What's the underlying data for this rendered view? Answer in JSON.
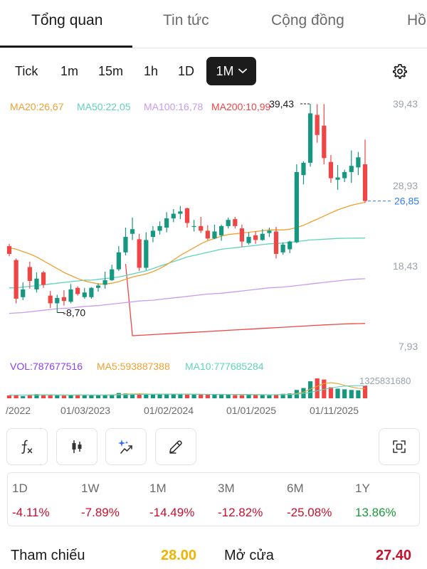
{
  "tabs": [
    {
      "label": "Tổng quan",
      "active": true
    },
    {
      "label": "Tin tức",
      "active": false
    },
    {
      "label": "Cộng đồng",
      "active": false
    },
    {
      "label": "Hồ",
      "active": false
    }
  ],
  "intervals": [
    {
      "label": "Tick"
    },
    {
      "label": "1m"
    },
    {
      "label": "15m"
    },
    {
      "label": "1h"
    },
    {
      "label": "1D"
    },
    {
      "label": "1M",
      "active": true
    }
  ],
  "colors": {
    "up": "#16977f",
    "down": "#f04545",
    "ma20": "#f0a030",
    "ma50": "#5fd3bc",
    "ma100": "#c89cf0",
    "ma200": "#f04545",
    "vol": "#8a3ff0"
  },
  "chart_data": {
    "type": "candlestick",
    "ma_legend": {
      "ma20": "MA20:26,67",
      "ma50": "MA50:22,05",
      "ma100": "MA100:16,78",
      "ma200": "MA200:10,99"
    },
    "y_ticks": [
      "39,43",
      "28,93",
      "18,43",
      "7,93"
    ],
    "ylim": [
      7.93,
      39.43
    ],
    "high_label": "39,43",
    "low_label": "-8,70",
    "last_price_label": "26,85",
    "last_price": 26.85,
    "x_ticks": [
      "/2022",
      "01/03/2023",
      "01/02/2024",
      "01/01/2025",
      "01/11/2025"
    ],
    "candles": [
      {
        "o": 21.0,
        "h": 21.3,
        "l": 19.7,
        "c": 20.0
      },
      {
        "o": 19.2,
        "h": 19.4,
        "l": 13.6,
        "c": 14.2
      },
      {
        "o": 14.4,
        "h": 16.3,
        "l": 14.0,
        "c": 15.4
      },
      {
        "o": 18.3,
        "h": 19.0,
        "l": 15.5,
        "c": 16.5
      },
      {
        "o": 15.4,
        "h": 17.6,
        "l": 15.0,
        "c": 16.8
      },
      {
        "o": 17.6,
        "h": 17.8,
        "l": 15.6,
        "c": 16.0
      },
      {
        "o": 14.6,
        "h": 15.2,
        "l": 13.0,
        "c": 13.6
      },
      {
        "o": 13.6,
        "h": 14.7,
        "l": 12.4,
        "c": 14.3
      },
      {
        "o": 14.4,
        "h": 15.3,
        "l": 13.3,
        "c": 13.9
      },
      {
        "o": 13.8,
        "h": 16.1,
        "l": 13.6,
        "c": 15.4
      },
      {
        "o": 15.6,
        "h": 15.8,
        "l": 14.6,
        "c": 14.8
      },
      {
        "o": 14.4,
        "h": 15.6,
        "l": 14.2,
        "c": 15.0
      },
      {
        "o": 14.4,
        "h": 15.7,
        "l": 14.2,
        "c": 15.6
      },
      {
        "o": 15.6,
        "h": 16.2,
        "l": 15.1,
        "c": 15.9
      },
      {
        "o": 16.0,
        "h": 17.7,
        "l": 15.5,
        "c": 16.6
      },
      {
        "o": 16.6,
        "h": 18.6,
        "l": 16.5,
        "c": 18.0
      },
      {
        "o": 18.0,
        "h": 21.0,
        "l": 17.8,
        "c": 20.2
      },
      {
        "o": 20.2,
        "h": 23.4,
        "l": 19.8,
        "c": 22.2
      },
      {
        "o": 22.6,
        "h": 24.7,
        "l": 21.8,
        "c": 23.2
      },
      {
        "o": 21.9,
        "h": 22.6,
        "l": 17.8,
        "c": 18.2
      },
      {
        "o": 18.2,
        "h": 22.8,
        "l": 17.9,
        "c": 21.8
      },
      {
        "o": 22.2,
        "h": 23.6,
        "l": 21.5,
        "c": 23.0
      },
      {
        "o": 23.0,
        "h": 24.2,
        "l": 22.5,
        "c": 23.6
      },
      {
        "o": 23.4,
        "h": 25.4,
        "l": 22.8,
        "c": 24.6
      },
      {
        "o": 24.6,
        "h": 25.8,
        "l": 24.1,
        "c": 25.2
      },
      {
        "o": 25.2,
        "h": 26.2,
        "l": 24.5,
        "c": 25.5
      },
      {
        "o": 25.9,
        "h": 26.0,
        "l": 23.4,
        "c": 24.0
      },
      {
        "o": 23.6,
        "h": 24.4,
        "l": 22.9,
        "c": 23.6
      },
      {
        "o": 23.6,
        "h": 24.8,
        "l": 22.7,
        "c": 23.0
      },
      {
        "o": 23.0,
        "h": 23.7,
        "l": 21.8,
        "c": 22.0
      },
      {
        "o": 22.0,
        "h": 23.8,
        "l": 21.9,
        "c": 22.9
      },
      {
        "o": 22.4,
        "h": 23.8,
        "l": 21.7,
        "c": 23.6
      },
      {
        "o": 23.6,
        "h": 24.7,
        "l": 23.3,
        "c": 24.4
      },
      {
        "o": 24.5,
        "h": 24.8,
        "l": 23.3,
        "c": 23.6
      },
      {
        "o": 23.3,
        "h": 23.8,
        "l": 20.9,
        "c": 21.6
      },
      {
        "o": 21.4,
        "h": 22.8,
        "l": 21.2,
        "c": 22.2
      },
      {
        "o": 22.4,
        "h": 22.9,
        "l": 21.3,
        "c": 21.8
      },
      {
        "o": 21.8,
        "h": 23.2,
        "l": 21.7,
        "c": 22.6
      },
      {
        "o": 22.7,
        "h": 23.4,
        "l": 22.2,
        "c": 23.0
      },
      {
        "o": 22.9,
        "h": 23.5,
        "l": 19.4,
        "c": 20.0
      },
      {
        "o": 20.2,
        "h": 21.5,
        "l": 19.9,
        "c": 21.2
      },
      {
        "o": 20.6,
        "h": 21.7,
        "l": 20.1,
        "c": 21.6
      },
      {
        "o": 21.5,
        "h": 31.6,
        "l": 21.4,
        "c": 30.6
      },
      {
        "o": 30.2,
        "h": 32.0,
        "l": 29.0,
        "c": 31.8
      },
      {
        "o": 31.8,
        "h": 39.43,
        "l": 31.3,
        "c": 38.2
      },
      {
        "o": 38.0,
        "h": 39.4,
        "l": 34.4,
        "c": 35.4
      },
      {
        "o": 36.6,
        "h": 39.4,
        "l": 31.6,
        "c": 32.4
      },
      {
        "o": 31.9,
        "h": 32.8,
        "l": 29.2,
        "c": 29.8
      },
      {
        "o": 29.6,
        "h": 31.5,
        "l": 28.3,
        "c": 29.9
      },
      {
        "o": 29.8,
        "h": 30.9,
        "l": 29.3,
        "c": 30.6
      },
      {
        "o": 30.6,
        "h": 33.4,
        "l": 29.2,
        "c": 31.4
      },
      {
        "o": 31.2,
        "h": 33.2,
        "l": 30.2,
        "c": 32.5
      },
      {
        "o": 31.6,
        "h": 34.8,
        "l": 26.6,
        "c": 26.85
      }
    ],
    "ma20": [
      20.8,
      20.6,
      20.3,
      20.0,
      19.6,
      19.1,
      18.6,
      18.1,
      17.6,
      17.2,
      16.8,
      16.5,
      16.3,
      16.1,
      16.1,
      16.2,
      16.4,
      16.7,
      17.0,
      17.2,
      17.4,
      17.7,
      18.1,
      18.6,
      19.2,
      19.8,
      20.3,
      20.8,
      21.3,
      21.7,
      22.0,
      22.3,
      22.5,
      22.6,
      22.7,
      22.8,
      22.9,
      23.0,
      23.1,
      23.1,
      23.1,
      23.2,
      23.4,
      23.7,
      24.1,
      24.5,
      24.9,
      25.3,
      25.7,
      26.0,
      26.3,
      26.5,
      26.67
    ],
    "ma50": [
      15.6,
      15.6,
      15.7,
      15.8,
      15.9,
      16.0,
      16.1,
      16.2,
      16.3,
      16.4,
      16.5,
      16.6,
      16.6,
      16.7,
      16.8,
      16.9,
      17.0,
      17.2,
      17.4,
      17.6,
      17.8,
      18.1,
      18.4,
      18.7,
      19.0,
      19.3,
      19.6,
      19.8,
      20.0,
      20.2,
      20.4,
      20.6,
      20.7,
      20.8,
      20.9,
      21.0,
      21.1,
      21.2,
      21.3,
      21.35,
      21.4,
      21.5,
      21.6,
      21.7,
      21.8,
      21.85,
      21.9,
      21.95,
      22.0,
      22.02,
      22.03,
      22.04,
      22.05
    ],
    "ma100": [
      12.3,
      12.35,
      12.4,
      12.5,
      12.6,
      12.7,
      12.8,
      12.9,
      12.95,
      13.0,
      13.1,
      13.2,
      13.25,
      13.3,
      13.4,
      13.5,
      13.6,
      13.7,
      13.8,
      13.9,
      13.95,
      14.0,
      14.1,
      14.2,
      14.3,
      14.4,
      14.5,
      14.6,
      14.7,
      14.8,
      14.85,
      14.9,
      15.0,
      15.1,
      15.2,
      15.3,
      15.4,
      15.5,
      15.6,
      15.65,
      15.7,
      15.8,
      15.9,
      16.0,
      16.1,
      16.2,
      16.3,
      16.4,
      16.5,
      16.6,
      16.7,
      16.74,
      16.78
    ],
    "ma200": [
      null,
      null,
      null,
      null,
      null,
      null,
      null,
      null,
      null,
      null,
      null,
      null,
      null,
      null,
      null,
      null,
      null,
      18.7,
      9.4,
      9.45,
      9.5,
      9.55,
      9.6,
      9.65,
      9.7,
      9.75,
      9.8,
      9.85,
      9.9,
      9.95,
      10.0,
      10.05,
      10.1,
      10.15,
      10.2,
      10.25,
      10.3,
      10.35,
      10.4,
      10.45,
      10.5,
      10.55,
      10.6,
      10.65,
      10.7,
      10.75,
      10.8,
      10.84,
      10.88,
      10.92,
      10.95,
      10.97,
      10.99
    ],
    "volume": {
      "legend": {
        "vol": "VOL:787677516",
        "ma5": "MA5:593887388",
        "ma10": "MA10:777685284"
      },
      "max_label": "1325831680",
      "max": 1325831680,
      "values": [
        180,
        210,
        140,
        230,
        260,
        200,
        210,
        190,
        170,
        220,
        230,
        180,
        190,
        180,
        210,
        220,
        330,
        300,
        280,
        240,
        250,
        230,
        280,
        280,
        260,
        250,
        230,
        270,
        240,
        220,
        230,
        260,
        230,
        200,
        190,
        230,
        220,
        210,
        190,
        240,
        280,
        300,
        520,
        640,
        1060,
        1240,
        1170,
        690,
        600,
        560,
        520,
        500,
        788
      ],
      "ma5": [
        190,
        195,
        198,
        205,
        215,
        220,
        215,
        210,
        205,
        200,
        205,
        210,
        205,
        200,
        205,
        215,
        235,
        255,
        270,
        280,
        270,
        255,
        255,
        260,
        265,
        260,
        255,
        250,
        250,
        245,
        240,
        235,
        235,
        235,
        225,
        220,
        215,
        215,
        215,
        220,
        230,
        245,
        300,
        380,
        570,
        750,
        920,
        970,
        920,
        800,
        700,
        620,
        594
      ],
      "ma10": [
        195,
        198,
        200,
        203,
        206,
        208,
        210,
        210,
        210,
        208,
        210,
        210,
        209,
        208,
        208,
        210,
        218,
        228,
        238,
        245,
        250,
        250,
        252,
        255,
        258,
        258,
        257,
        256,
        253,
        250,
        248,
        246,
        244,
        242,
        240,
        237,
        233,
        230,
        228,
        228,
        230,
        236,
        260,
        300,
        380,
        470,
        560,
        640,
        710,
        760,
        780,
        785,
        778
      ]
    }
  },
  "tools": [
    {
      "icon": "function-icon"
    },
    {
      "icon": "candlestick-icon"
    },
    {
      "icon": "sparkle-icon"
    },
    {
      "icon": "pencil-icon"
    },
    {
      "icon": "fullscreen-icon"
    }
  ],
  "performance": [
    {
      "label": "1D",
      "value": "-4.11%",
      "dir": "down"
    },
    {
      "label": "1W",
      "value": "-7.89%",
      "dir": "down"
    },
    {
      "label": "1M",
      "value": "-14.49%",
      "dir": "down"
    },
    {
      "label": "3M",
      "value": "-12.82%",
      "dir": "down"
    },
    {
      "label": "6M",
      "value": "-25.08%",
      "dir": "down"
    },
    {
      "label": "1Y",
      "value": "13.86%",
      "dir": "up"
    }
  ],
  "summary": {
    "ref_label": "Tham chiếu",
    "ref_value": "28.00",
    "open_label": "Mở cửa",
    "open_value": "27.40"
  }
}
